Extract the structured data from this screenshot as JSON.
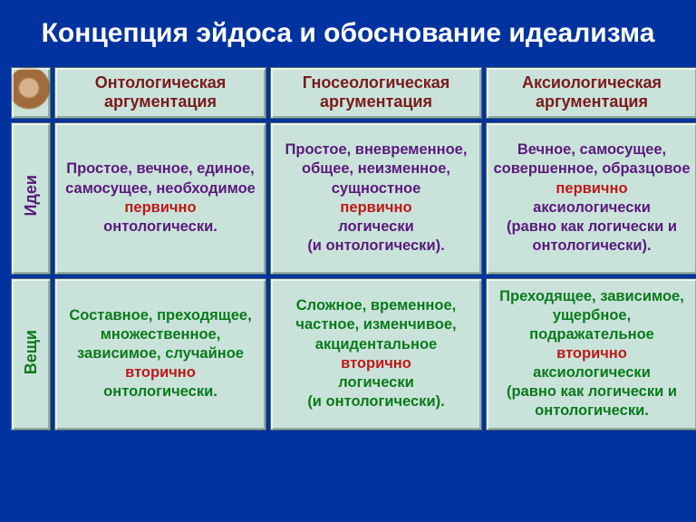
{
  "title": "Концепция эйдоса и обоснование идеализма",
  "headers": {
    "col1_line1": "Онтологическая",
    "col1_line2": "аргументация",
    "col2_line1": "Гносеологическая",
    "col2_line2": "аргументация",
    "col3_line1": "Аксиологическая",
    "col3_line2": "аргументация"
  },
  "rows": {
    "ideas_label": "Идеи",
    "things_label": "Вещи"
  },
  "cells": {
    "ideas_onto": {
      "p1": "Простое, вечное, единое, самосущее, необходимое",
      "p2": "первично",
      "p3": "онтологически."
    },
    "ideas_gnos": {
      "p1": "Простое, вневременное, общее, неизменное, сущностное",
      "p2": "первично",
      "p3": "логически",
      "p4": "(и онтологически)."
    },
    "ideas_axio": {
      "p1": "Вечное, самосущее, совершенное, образцовое",
      "p2": "первично",
      "p3": "аксиологически",
      "p4": "(равно как логически и онтологически)."
    },
    "things_onto": {
      "p1": "Составное, преходящее, множественное, зависимое, случайное",
      "p2": "вторично",
      "p3": "онтологически."
    },
    "things_gnos": {
      "p1": "Сложное, временное, частное, изменчивое, акцидентальное",
      "p2": "вторично",
      "p3": "логически",
      "p4": "(и онтологически)."
    },
    "things_axio": {
      "p1": "Преходящее, зависимое, ущербное, подражательное",
      "p2": "вторично",
      "p3": "аксиологически",
      "p4": "(равно как логически и онтологически."
    }
  },
  "style": {
    "bg": "#0033a0",
    "cell_bg": "#c9e3db",
    "title_color": "#ffffff",
    "header_text_color": "#7b1a1a",
    "rowlabel_color": "#5a1a7b",
    "ideas_color": "#5a1a7b",
    "things_color": "#0a7a1a",
    "accent_color": "#c01818",
    "title_fontsize": 30,
    "header_fontsize": 18,
    "body_fontsize": 16.5
  }
}
